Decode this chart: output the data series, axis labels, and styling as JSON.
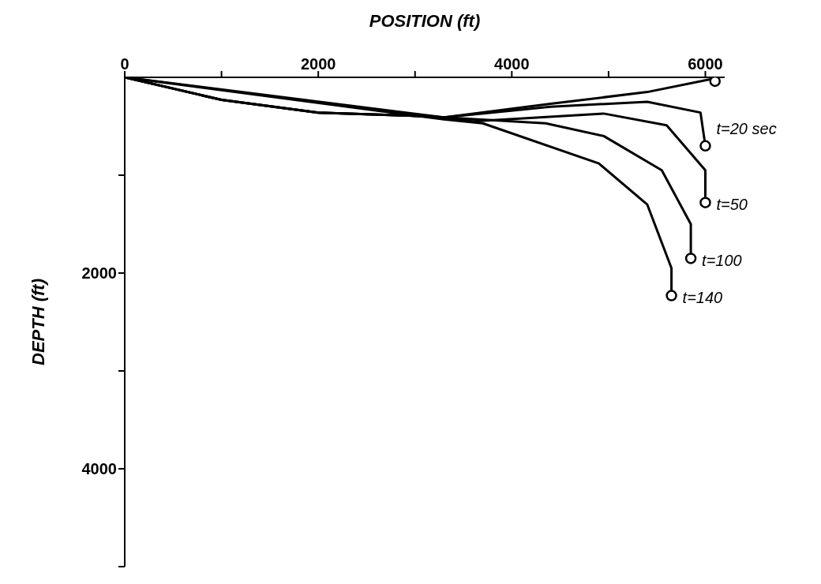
{
  "chart_data": {
    "type": "line",
    "xlabel": "POSITION (ft)",
    "ylabel": "DEPTH (ft)",
    "xlim": [
      0,
      6200
    ],
    "xticks": [
      0,
      {
        "value": 1000,
        "label": null
      },
      2000,
      {
        "value": 3000,
        "label": null
      },
      4000,
      {
        "value": 5000,
        "label": null
      },
      6000
    ],
    "ylim": [
      5000,
      0
    ],
    "yticks": [
      {
        "value": 1000,
        "label": null
      },
      2000,
      {
        "value": 3000,
        "label": null
      },
      4000,
      {
        "value": 5000,
        "label": null
      }
    ],
    "line_style": "solid",
    "series": [
      {
        "color": "#000000",
        "x": [
          0,
          1000,
          2000,
          2900,
          3300,
          4400,
          5400,
          6050,
          6100
        ],
        "values": [
          0,
          230,
          360,
          390,
          410,
          270,
          150,
          20,
          40
        ]
      },
      {
        "name": "t=20 sec",
        "color": "#000000",
        "x": [
          0,
          1000,
          2000,
          2900,
          3300,
          4400,
          5400,
          5950,
          6000
        ],
        "values": [
          0,
          230,
          360,
          390,
          410,
          300,
          250,
          360,
          700
        ]
      },
      {
        "name": "t=50",
        "color": "#000000",
        "x": [
          0,
          1000,
          2000,
          2900,
          3300,
          3600,
          4950,
          5600,
          6000,
          6000
        ],
        "values": [
          0,
          230,
          360,
          390,
          410,
          450,
          370,
          490,
          950,
          1280
        ]
      },
      {
        "name": "t=100",
        "color": "#000000",
        "x": [
          0,
          3300,
          4350,
          4950,
          5550,
          5850,
          5850
        ],
        "values": [
          0,
          410,
          470,
          600,
          950,
          1500,
          1850
        ]
      },
      {
        "name": "t=140",
        "color": "#000000",
        "x": [
          0,
          3300,
          3700,
          4900,
          5400,
          5650,
          5650
        ],
        "values": [
          0,
          430,
          470,
          880,
          1300,
          1950,
          2230
        ]
      }
    ]
  }
}
